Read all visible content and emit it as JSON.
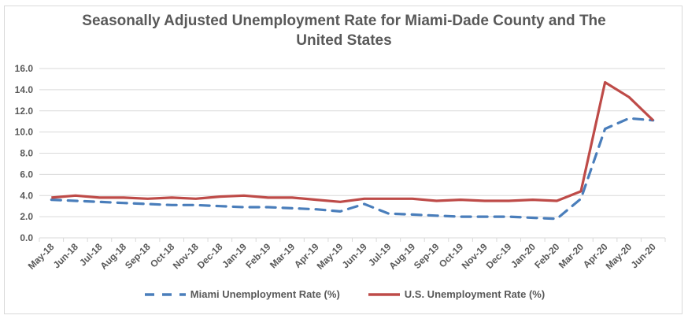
{
  "chart_data": {
    "type": "line",
    "title": "Seasonally Adjusted Unemployment Rate for Miami-Dade County and The United States",
    "title_lines": [
      "Seasonally Adjusted Unemployment Rate for Miami-Dade County and The",
      "United States"
    ],
    "xlabel": "",
    "ylabel": "",
    "ylim": [
      0,
      16
    ],
    "yticks": [
      "0.0",
      "2.0",
      "4.0",
      "6.0",
      "8.0",
      "10.0",
      "12.0",
      "14.0",
      "16.0"
    ],
    "ytick_values": [
      0,
      2,
      4,
      6,
      8,
      10,
      12,
      14,
      16
    ],
    "grid": true,
    "legend_position": "bottom",
    "categories": [
      "May-18",
      "Jun-18",
      "Jul-18",
      "Aug-18",
      "Sep-18",
      "Oct-18",
      "Nov-18",
      "Dec-18",
      "Jan-19",
      "Feb-19",
      "Mar-19",
      "Apr-19",
      "May-19",
      "Jun-19",
      "Jul-19",
      "Aug-19",
      "Sep-19",
      "Oct-19",
      "Nov-19",
      "Dec-19",
      "Jan-20",
      "Feb-20",
      "Mar-20",
      "Apr-20",
      "May-20",
      "Jun-20"
    ],
    "series": [
      {
        "name": "Miami Unemployment Rate (%)",
        "color": "#4a7ebb",
        "style": "dashed",
        "values": [
          3.6,
          3.5,
          3.4,
          3.3,
          3.2,
          3.1,
          3.1,
          3.0,
          2.9,
          2.9,
          2.8,
          2.7,
          2.5,
          3.2,
          2.3,
          2.2,
          2.1,
          2.0,
          2.0,
          2.0,
          1.9,
          1.8,
          3.7,
          10.3,
          11.3,
          11.1
        ]
      },
      {
        "name": "U.S. Unemployment Rate (%)",
        "color": "#be4b48",
        "style": "solid",
        "values": [
          3.8,
          4.0,
          3.8,
          3.8,
          3.7,
          3.8,
          3.7,
          3.9,
          4.0,
          3.8,
          3.8,
          3.6,
          3.4,
          3.7,
          3.7,
          3.7,
          3.5,
          3.6,
          3.5,
          3.5,
          3.6,
          3.5,
          4.4,
          14.7,
          13.3,
          11.1
        ]
      }
    ]
  }
}
